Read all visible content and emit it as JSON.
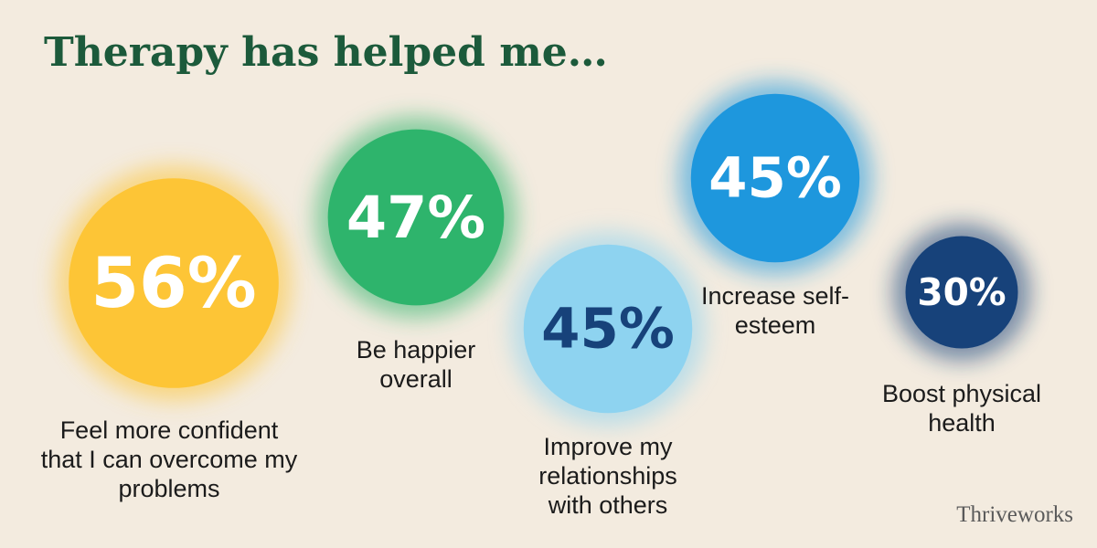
{
  "chart_data": {
    "type": "bubble",
    "title": "Therapy has helped me…",
    "categories": [
      "Feel more confident that I can overcome my problems",
      "Be happier overall",
      "Improve my relationships with others",
      "Increase self-esteem",
      "Boost physical health"
    ],
    "values": [
      56,
      47,
      45,
      45,
      30
    ],
    "value_labels": [
      "56%",
      "47%",
      "45%",
      "45%",
      "30%"
    ],
    "colors": [
      "#fdc536",
      "#2eb46c",
      "#8ed3f0",
      "#1e97dd",
      "#17427a"
    ],
    "logo": "Thriveworks"
  }
}
